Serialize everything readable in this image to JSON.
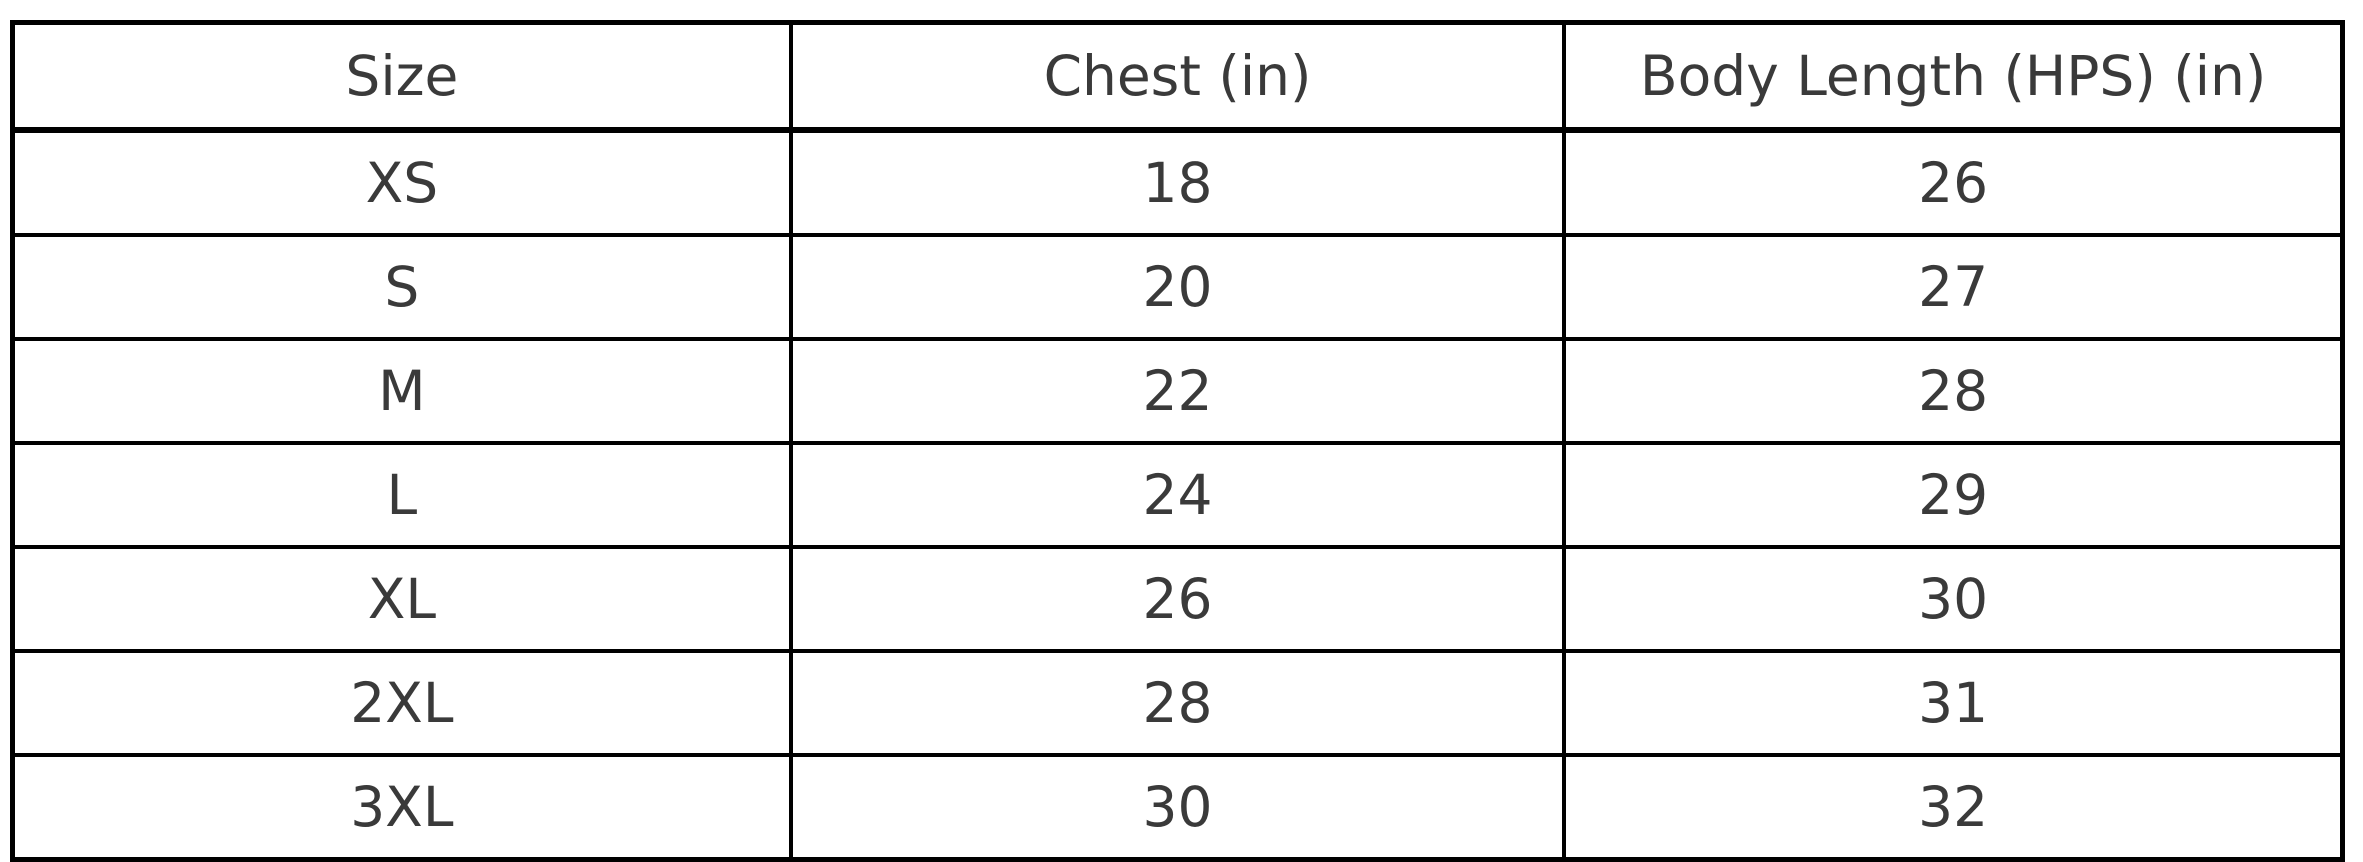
{
  "chart_data": {
    "type": "table",
    "title": "",
    "columns": [
      "Size",
      "Chest (in)",
      "Body Length (HPS) (in)"
    ],
    "rows": [
      [
        "XS",
        "18",
        "26"
      ],
      [
        "S",
        "20",
        "27"
      ],
      [
        "M",
        "22",
        "28"
      ],
      [
        "L",
        "24",
        "29"
      ],
      [
        "XL",
        "26",
        "30"
      ],
      [
        "2XL",
        "28",
        "31"
      ],
      [
        "3XL",
        "30",
        "32"
      ]
    ],
    "layout": {
      "grid": "all-borders",
      "cell_alignment": "center"
    },
    "colors": {
      "border": "#000000",
      "text": "#3a3a3a",
      "background": "#ffffff"
    }
  }
}
